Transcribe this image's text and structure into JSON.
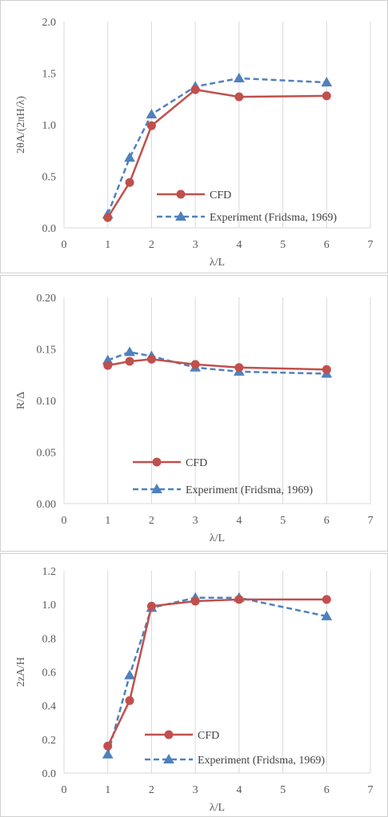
{
  "colors": {
    "cfd": "#c0504d",
    "experiment": "#4f81bd",
    "grid": "#d9d9d9",
    "text": "#595959"
  },
  "chart_data": [
    {
      "type": "line",
      "title": "",
      "xlabel": "λ/L",
      "ylabel": "2θA/(2πH/λ)",
      "xlim": [
        0,
        7
      ],
      "ylim": [
        0,
        2
      ],
      "xticks": [
        "0",
        "1",
        "2",
        "3",
        "4",
        "5",
        "6",
        "7"
      ],
      "yticks": [
        "0.0",
        "0.5",
        "1.0",
        "1.5",
        "2.0"
      ],
      "grid": "vertical",
      "legend": "bottom-center",
      "series": [
        {
          "name": "CFD",
          "marker": "circle",
          "line": "solid",
          "color": "#c0504d",
          "x": [
            1,
            1.5,
            2,
            3,
            4,
            6
          ],
          "y": [
            0.1,
            0.44,
            0.99,
            1.34,
            1.27,
            1.28
          ]
        },
        {
          "name": "Experiment (Fridsma, 1969)",
          "marker": "triangle",
          "line": "dashed",
          "color": "#4f81bd",
          "x": [
            1,
            1.5,
            2,
            3,
            4,
            6
          ],
          "y": [
            0.13,
            0.68,
            1.1,
            1.37,
            1.45,
            1.41
          ]
        }
      ]
    },
    {
      "type": "line",
      "title": "",
      "xlabel": "λ/L",
      "ylabel": "R/Δ",
      "xlim": [
        0,
        7
      ],
      "ylim": [
        0,
        0.2
      ],
      "xticks": [
        "0",
        "1",
        "2",
        "3",
        "4",
        "5",
        "6",
        "7"
      ],
      "yticks": [
        "0.00",
        "0.05",
        "0.10",
        "0.15",
        "0.20"
      ],
      "grid": "vertical",
      "legend": "bottom-center",
      "series": [
        {
          "name": "CFD",
          "marker": "circle",
          "line": "solid",
          "color": "#c0504d",
          "x": [
            1,
            1.5,
            2,
            3,
            4,
            6
          ],
          "y": [
            0.134,
            0.138,
            0.14,
            0.135,
            0.132,
            0.13
          ]
        },
        {
          "name": "Experiment (Fridsma, 1969)",
          "marker": "triangle",
          "line": "dashed",
          "color": "#4f81bd",
          "x": [
            1,
            1.5,
            2,
            3,
            4,
            6
          ],
          "y": [
            0.139,
            0.147,
            0.143,
            0.132,
            0.128,
            0.126
          ]
        }
      ]
    },
    {
      "type": "line",
      "title": "",
      "xlabel": "λ/L",
      "ylabel": "2zA/H",
      "xlim": [
        0,
        7
      ],
      "ylim": [
        0,
        1.2
      ],
      "xticks": [
        "0",
        "1",
        "2",
        "3",
        "4",
        "5",
        "6",
        "7"
      ],
      "yticks": [
        "0.0",
        "0.2",
        "0.4",
        "0.6",
        "0.8",
        "1.0",
        "1.2"
      ],
      "grid": "vertical",
      "legend": "bottom-center",
      "series": [
        {
          "name": "CFD",
          "marker": "circle",
          "line": "solid",
          "color": "#c0504d",
          "x": [
            1,
            1.5,
            2,
            3,
            4,
            6
          ],
          "y": [
            0.16,
            0.43,
            0.99,
            1.02,
            1.03,
            1.03
          ]
        },
        {
          "name": "Experiment (Fridsma, 1969)",
          "marker": "triangle",
          "line": "dashed",
          "color": "#4f81bd",
          "x": [
            1,
            1.5,
            2,
            3,
            4,
            6
          ],
          "y": [
            0.11,
            0.58,
            0.98,
            1.04,
            1.04,
            0.93
          ]
        }
      ]
    }
  ]
}
